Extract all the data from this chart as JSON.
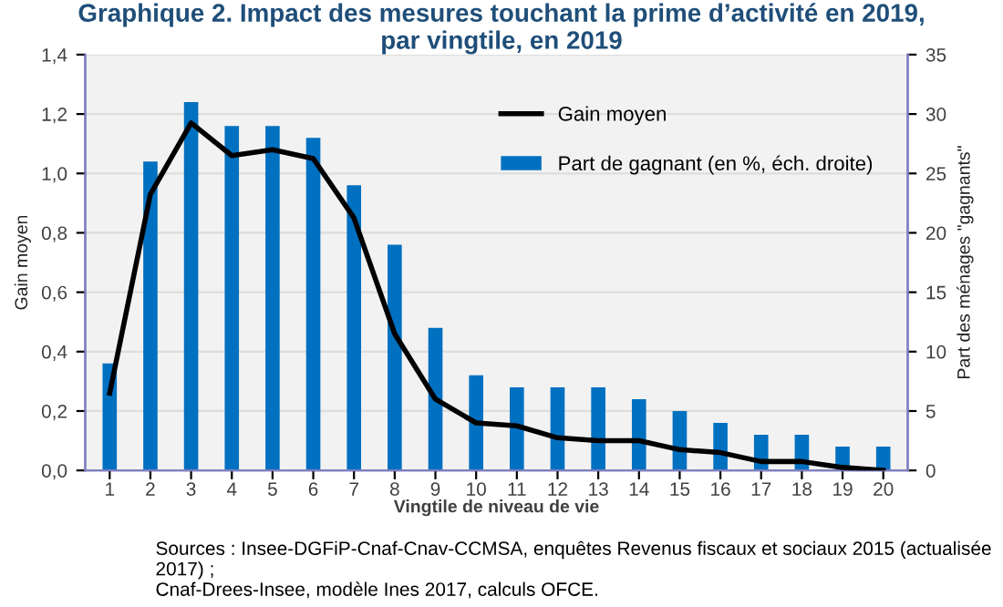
{
  "chart_data": {
    "type": "bar",
    "title": "Graphique 2. Impact des mesures touchant la prime d’activité en 2019,\npar vingtile, en 2019",
    "xlabel": "Vingtile de niveau de vie",
    "ylabel": "Gain moyen",
    "y2label": "Part des ménages \"gagnants\"",
    "categories": [
      "1",
      "2",
      "3",
      "4",
      "5",
      "6",
      "7",
      "8",
      "9",
      "10",
      "11",
      "12",
      "13",
      "14",
      "15",
      "16",
      "17",
      "18",
      "19",
      "20"
    ],
    "series": [
      {
        "name": "Part de gagnant (en %, éch. droite)",
        "axis": "y2",
        "color": "#0070c0",
        "values": [
          9,
          26,
          31,
          29,
          29,
          28,
          24,
          19,
          12,
          8,
          7,
          7,
          7,
          6,
          5,
          4,
          3,
          3,
          2,
          2
        ]
      },
      {
        "name": "Gain moyen",
        "type": "line",
        "color": "#000000",
        "values": [
          0.26,
          0.93,
          1.17,
          1.06,
          1.08,
          1.05,
          0.85,
          0.46,
          0.24,
          0.16,
          0.15,
          0.11,
          0.1,
          0.1,
          0.07,
          0.06,
          0.03,
          0.03,
          0.01,
          0.0
        ]
      }
    ],
    "ylim": [
      0,
      1.4
    ],
    "yticks": [
      {
        "value": 0,
        "label": "0,0"
      },
      {
        "value": 0.2,
        "label": "0,2"
      },
      {
        "value": 0.4,
        "label": "0,4"
      },
      {
        "value": 0.6,
        "label": "0,6"
      },
      {
        "value": 0.8,
        "label": "0,8"
      },
      {
        "value": 1.0,
        "label": "1,0"
      },
      {
        "value": 1.2,
        "label": "1,2"
      },
      {
        "value": 1.4,
        "label": "1,4"
      }
    ],
    "y2lim": [
      0,
      35
    ],
    "y2ticks": [
      0,
      5,
      10,
      15,
      20,
      25,
      30,
      35
    ],
    "grid": "y",
    "legend": "top right",
    "marker": "none",
    "line_style": "solid",
    "annotations": [
      "Sources : Insee-DGFiP-Cnaf-Cnav-CCMSA, enquêtes Revenus fiscaux et sociaux 2015 (actualisée 2017) ;\nCnaf-Drees-Insee, modèle Ines 2017, calculs OFCE."
    ]
  }
}
